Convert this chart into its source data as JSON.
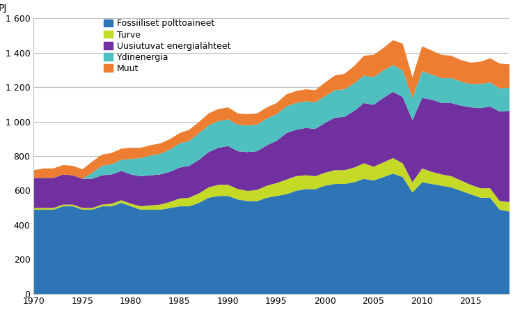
{
  "years": [
    1970,
    1971,
    1972,
    1973,
    1974,
    1975,
    1976,
    1977,
    1978,
    1979,
    1980,
    1981,
    1982,
    1983,
    1984,
    1985,
    1986,
    1987,
    1988,
    1989,
    1990,
    1991,
    1992,
    1993,
    1994,
    1995,
    1996,
    1997,
    1998,
    1999,
    2000,
    2001,
    2002,
    2003,
    2004,
    2005,
    2006,
    2007,
    2008,
    2009,
    2010,
    2011,
    2012,
    2013,
    2014,
    2015,
    2016,
    2017,
    2018,
    2019
  ],
  "fossiiliset": [
    490,
    490,
    490,
    510,
    510,
    490,
    490,
    510,
    510,
    530,
    510,
    490,
    490,
    490,
    500,
    510,
    510,
    530,
    560,
    570,
    570,
    550,
    540,
    540,
    560,
    570,
    580,
    600,
    610,
    610,
    630,
    640,
    640,
    650,
    670,
    660,
    680,
    700,
    680,
    590,
    650,
    640,
    630,
    620,
    600,
    580,
    560,
    560,
    490,
    480
  ],
  "turve": [
    10,
    10,
    10,
    10,
    10,
    10,
    10,
    10,
    15,
    15,
    15,
    20,
    25,
    30,
    35,
    45,
    50,
    55,
    60,
    65,
    65,
    60,
    60,
    65,
    70,
    75,
    85,
    85,
    80,
    75,
    75,
    80,
    80,
    85,
    90,
    80,
    85,
    90,
    80,
    60,
    80,
    70,
    65,
    65,
    60,
    55,
    55,
    55,
    50,
    55
  ],
  "uusiutuvat": [
    175,
    175,
    175,
    175,
    170,
    170,
    170,
    170,
    170,
    170,
    170,
    175,
    175,
    175,
    175,
    180,
    185,
    195,
    205,
    215,
    225,
    220,
    225,
    225,
    235,
    245,
    270,
    270,
    275,
    275,
    290,
    305,
    310,
    330,
    350,
    360,
    375,
    385,
    385,
    360,
    410,
    420,
    415,
    425,
    435,
    450,
    465,
    475,
    520,
    530
  ],
  "ydinenergia": [
    0,
    0,
    0,
    0,
    0,
    0,
    35,
    55,
    60,
    65,
    90,
    105,
    115,
    120,
    130,
    140,
    145,
    155,
    155,
    155,
    155,
    155,
    155,
    155,
    155,
    155,
    155,
    155,
    155,
    155,
    155,
    160,
    160,
    160,
    160,
    160,
    160,
    155,
    155,
    130,
    155,
    145,
    145,
    145,
    140,
    135,
    140,
    140,
    135,
    135
  ],
  "muut": [
    45,
    55,
    55,
    55,
    55,
    55,
    65,
    65,
    65,
    65,
    65,
    60,
    60,
    60,
    60,
    60,
    65,
    65,
    70,
    70,
    70,
    65,
    65,
    65,
    65,
    65,
    70,
    70,
    70,
    70,
    80,
    85,
    90,
    100,
    115,
    130,
    130,
    145,
    155,
    120,
    145,
    140,
    135,
    130,
    125,
    125,
    130,
    140,
    145,
    135
  ],
  "colors": {
    "fossiiliset": "#2E75B6",
    "turve": "#C5D927",
    "uusiutuvat": "#7030A0",
    "ydinenergia": "#4FBFBF",
    "muut": "#ED7D31"
  },
  "labels": {
    "fossiiliset": "Fossiiliset polttoaineet",
    "turve": "Turve",
    "uusiutuvat": "Uusiutuvat energialähteet",
    "ydinenergia": "Ydinenergia",
    "muut": "Muut"
  },
  "ylabel": "PJ",
  "ylim": [
    0,
    1600
  ],
  "yticks": [
    0,
    200,
    400,
    600,
    800,
    1000,
    1200,
    1400,
    1600
  ],
  "ytick_labels": [
    "0",
    "200",
    "400",
    "600",
    "800",
    "1 000",
    "1 200",
    "1 400",
    "1 600"
  ],
  "xlim": [
    1970,
    2019
  ],
  "xticks": [
    1970,
    1975,
    1980,
    1985,
    1990,
    1995,
    2000,
    2005,
    2010,
    2015
  ],
  "background_color": "#FFFFFF",
  "grid_color": "#BFBFBF"
}
